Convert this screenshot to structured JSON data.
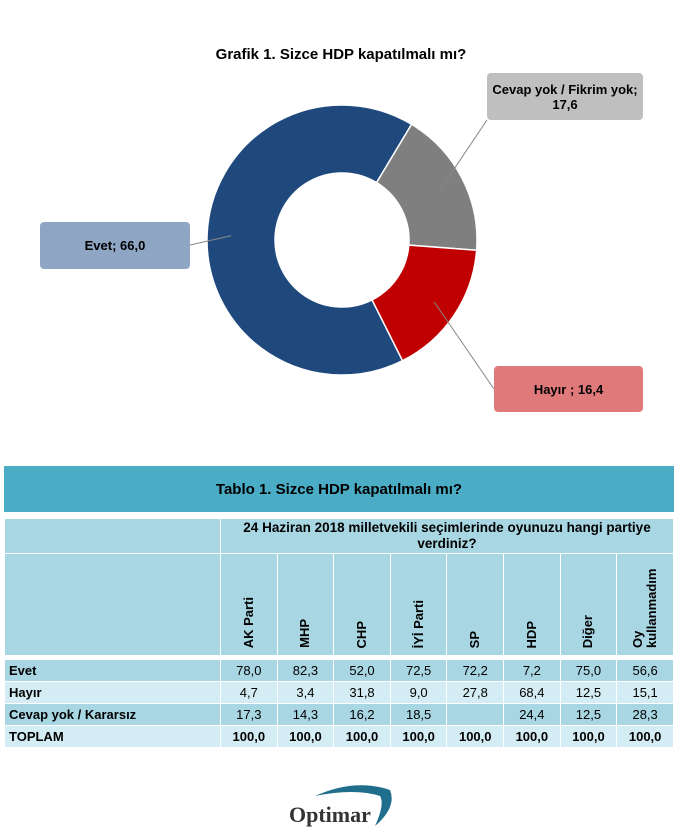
{
  "chart_data": {
    "type": "pie",
    "title": "Grafik 1. Sizce HDP kapatılmalı mı?",
    "slices": [
      {
        "label": "Cevap yok / Fikrim yok; 17,6",
        "name": "Cevap yok / Fikrim yok",
        "value": 17.6,
        "color": "#7F7F7F",
        "callout_color": "#BFBFBF"
      },
      {
        "label": "Hayır ; 16,4",
        "name": "Hayır",
        "value": 16.4,
        "color": "#C00000",
        "callout_color": "#E07A7A"
      },
      {
        "label": "Evet; 66,0",
        "name": "Evet",
        "value": 66.0,
        "color": "#1F497D",
        "callout_color": "#8EA5C4"
      }
    ],
    "donut": true
  },
  "table": {
    "title": "Tablo 1. Sizce HDP kapatılmalı mı?",
    "question": "24 Haziran 2018 milletvekili seçimlerinde oyunuzu hangi partiye verdiniz?",
    "columns": [
      "AK Parti",
      "MHP",
      "CHP",
      "İYİ Parti",
      "SP",
      "HDP",
      "Diğer",
      "Oy kullanmadım"
    ],
    "rows": [
      {
        "label": "Evet",
        "values": [
          "78,0",
          "82,3",
          "52,0",
          "72,5",
          "72,2",
          "7,2",
          "75,0",
          "56,6"
        ]
      },
      {
        "label": "Hayır",
        "values": [
          "4,7",
          "3,4",
          "31,8",
          "9,0",
          "27,8",
          "68,4",
          "12,5",
          "15,1"
        ]
      },
      {
        "label": "Cevap yok / Kararsız",
        "values": [
          "17,3",
          "14,3",
          "16,2",
          "18,5",
          "",
          "24,4",
          "12,5",
          "28,3"
        ]
      },
      {
        "label": "TOPLAM",
        "values": [
          "100,0",
          "100,0",
          "100,0",
          "100,0",
          "100,0",
          "100,0",
          "100,0",
          "100,0"
        ]
      }
    ]
  },
  "logo": {
    "text": "Optimar"
  }
}
